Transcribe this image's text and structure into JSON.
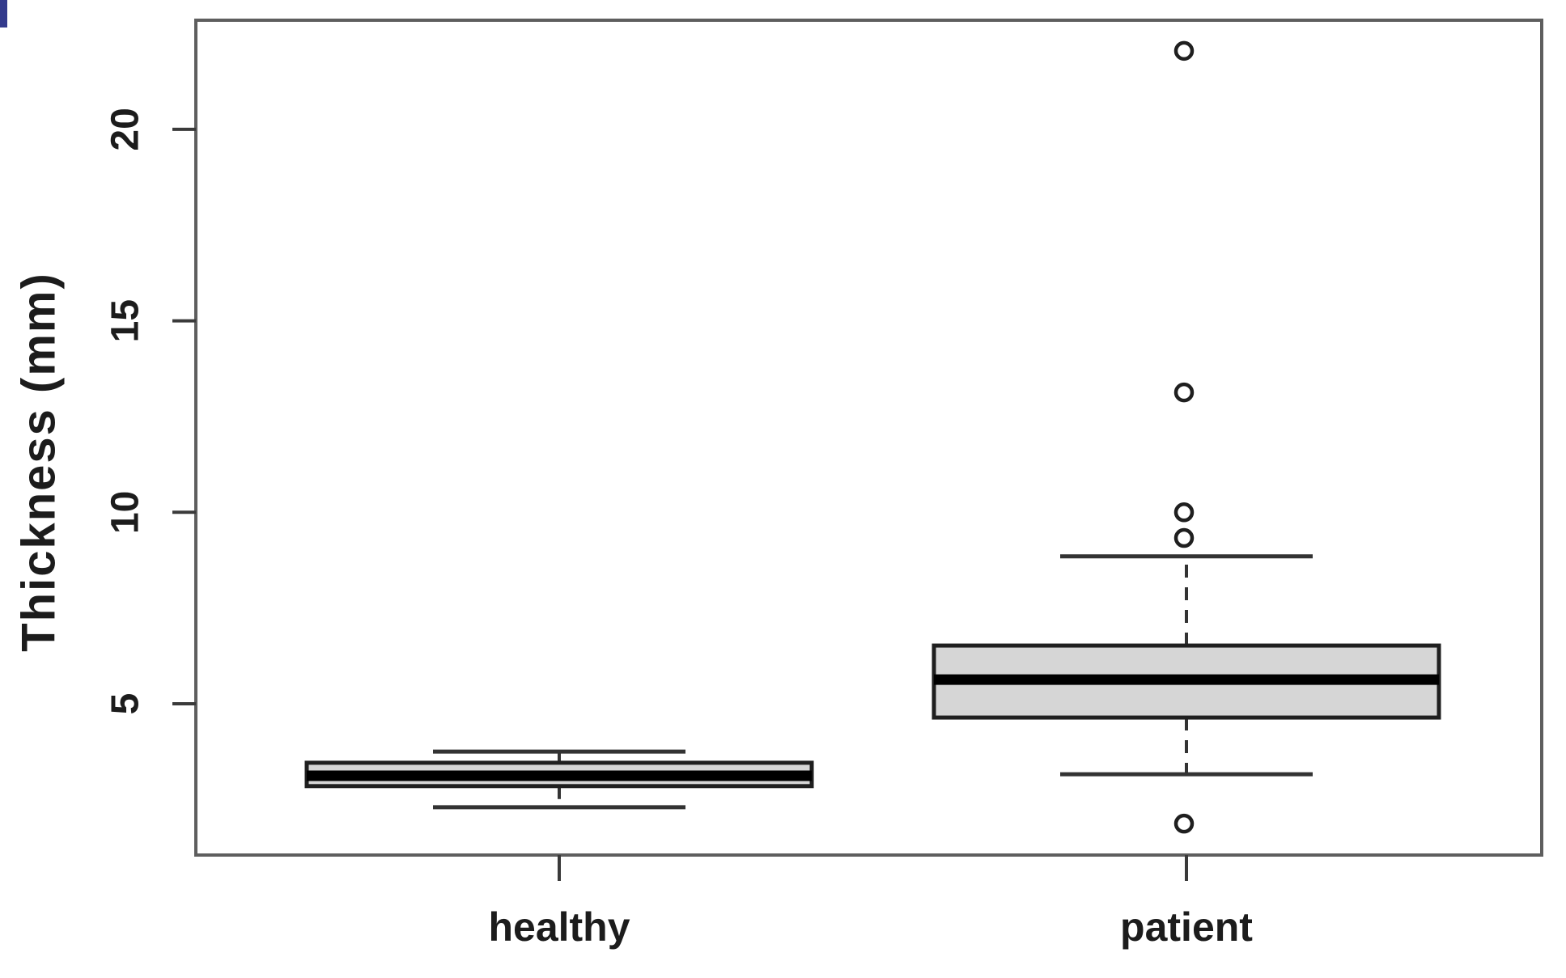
{
  "figure": {
    "background": "#ffffff",
    "plot_border_color": "#5e5e5e",
    "box_fill": "#d6d6d6",
    "box_border_color": "#1f1f1f",
    "whisker_color": "#333333",
    "median_color": "#000000",
    "tick_color": "#3a3a3a",
    "text_color": "#1c1c1c",
    "artifact_color": "#333a8c"
  },
  "chart_data": {
    "type": "boxplot",
    "title": "",
    "xlabel": "",
    "ylabel": "Thickness (mm)",
    "categories": [
      "healthy",
      "patient"
    ],
    "yticks": [
      5,
      10,
      15,
      20
    ],
    "ylim": [
      1.05,
      22.85
    ],
    "grid": false,
    "legend": null,
    "series": [
      {
        "name": "healthy",
        "whisker_low": 2.3,
        "q1": 2.85,
        "median": 3.12,
        "q3": 3.46,
        "whisker_high": 3.75,
        "outliers": []
      },
      {
        "name": "patient",
        "whisker_low": 3.16,
        "q1": 4.64,
        "median": 5.63,
        "q3": 6.52,
        "whisker_high": 8.85,
        "outliers": [
          22.05,
          13.13,
          10.0,
          9.33,
          1.87
        ]
      }
    ]
  }
}
